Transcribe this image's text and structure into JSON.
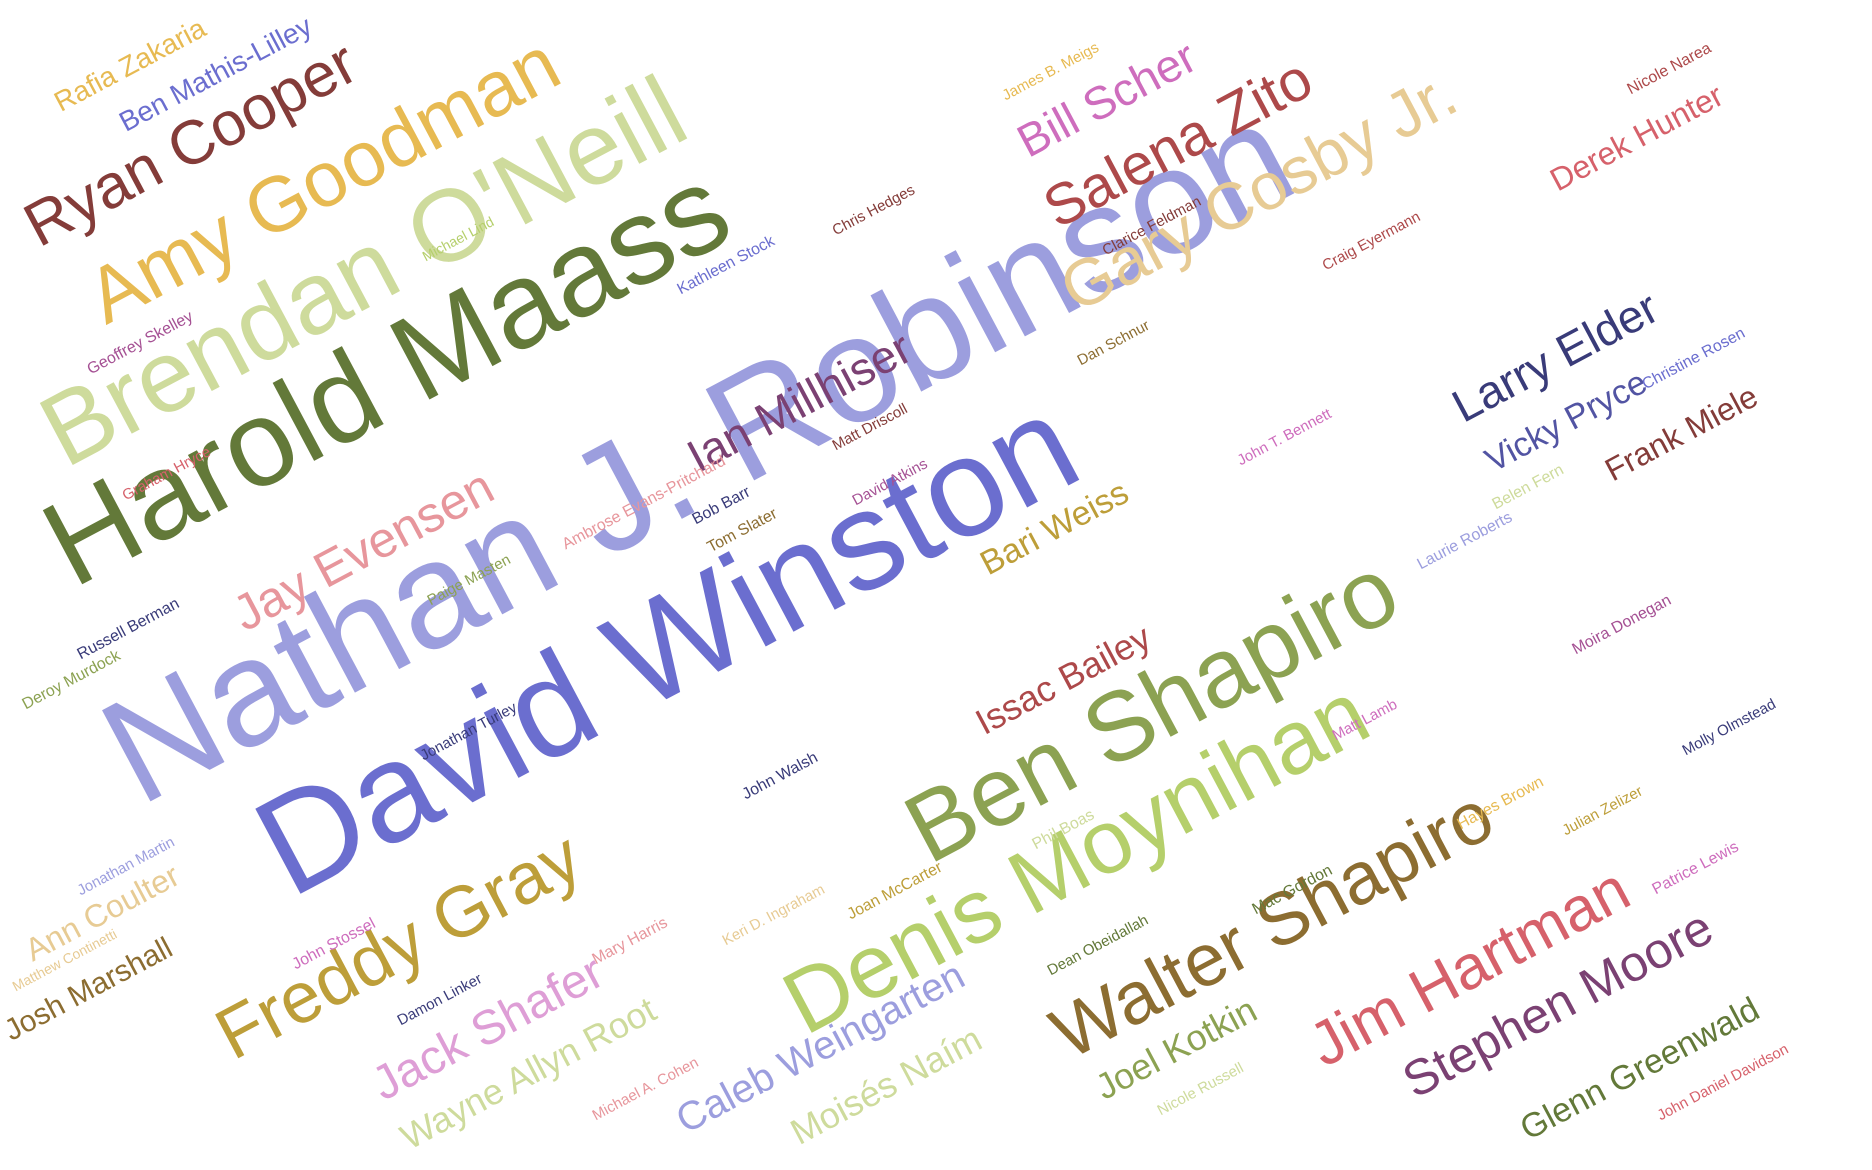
{
  "words": [
    {
      "text": "Nathan J. Robinson",
      "color": "#9c9ede"
    },
    {
      "text": "David Winston",
      "color": "#6b6ecf"
    },
    {
      "text": "Harold Maass",
      "color": "#637939"
    },
    {
      "text": "Brendan O'Neill",
      "color": "#cedb9c"
    },
    {
      "text": "Ben Shapiro",
      "color": "#8ca252"
    },
    {
      "text": "Denis Moynihan",
      "color": "#b5cf6b"
    },
    {
      "text": "Amy Goodman",
      "color": "#e7ba52"
    },
    {
      "text": "Walter Shapiro",
      "color": "#8c6d31"
    },
    {
      "text": "Gary Cosby Jr.",
      "color": "#e7cb94"
    },
    {
      "text": "Freddy Gray",
      "color": "#bd9e39"
    },
    {
      "text": "Salena Zito",
      "color": "#ad494a"
    },
    {
      "text": "Ryan Cooper",
      "color": "#843c39"
    },
    {
      "text": "Jim Hartman",
      "color": "#d6616b"
    },
    {
      "text": "Stephen Moore",
      "color": "#7b4173"
    },
    {
      "text": "Ian Millhiser",
      "color": "#7b4173"
    },
    {
      "text": "Jay Evensen",
      "color": "#e7969c"
    },
    {
      "text": "Larry Elder",
      "color": "#393b79"
    },
    {
      "text": "Bill Scher",
      "color": "#ce6dbd"
    },
    {
      "text": "Jack Shafer",
      "color": "#de9ed6"
    },
    {
      "text": "Caleb Weingarten",
      "color": "#9c9ede"
    },
    {
      "text": "Wayne Allyn Root",
      "color": "#cedb9c"
    },
    {
      "text": "Moisés Naím",
      "color": "#cedb9c"
    },
    {
      "text": "Joel Kotkin",
      "color": "#8ca252"
    },
    {
      "text": "Glenn Greenwald",
      "color": "#637939"
    },
    {
      "text": "Issac Bailey",
      "color": "#ad494a"
    },
    {
      "text": "Bari Weiss",
      "color": "#bd9e39"
    },
    {
      "text": "Vicky Pryce",
      "color": "#5254a3"
    },
    {
      "text": "Frank Miele",
      "color": "#843c39"
    },
    {
      "text": "Derek Hunter",
      "color": "#d6616b"
    },
    {
      "text": "Ann Coulter",
      "color": "#e7cb94"
    },
    {
      "text": "Josh Marshall",
      "color": "#8c6d31"
    },
    {
      "text": "Rafia Zakaria",
      "color": "#e7ba52"
    },
    {
      "text": "Ben Mathis-Lilley",
      "color": "#6b6ecf"
    },
    {
      "text": "Nicole Narea",
      "color": "#ad494a"
    },
    {
      "text": "James B. Meigs",
      "color": "#e7ba52"
    },
    {
      "text": "Chris Hedges",
      "color": "#843c39"
    },
    {
      "text": "Michael Lind",
      "color": "#b5cf6b"
    },
    {
      "text": "Kathleen Stock",
      "color": "#6b6ecf"
    },
    {
      "text": "Geoffrey Skelley",
      "color": "#a55194"
    },
    {
      "text": "Clarice Feldman",
      "color": "#843c39"
    },
    {
      "text": "Craig Eyermann",
      "color": "#ad494a"
    },
    {
      "text": "Dan Schnur",
      "color": "#8c6d31"
    },
    {
      "text": "Christine Rosen",
      "color": "#6b6ecf"
    },
    {
      "text": "Matt Driscoll",
      "color": "#843c39"
    },
    {
      "text": "Graham Hryce",
      "color": "#d6616b"
    },
    {
      "text": "John T. Bennett",
      "color": "#ce6dbd"
    },
    {
      "text": "David Atkins",
      "color": "#a55194"
    },
    {
      "text": "Ambrose Evans-Pritchard",
      "color": "#e7969c"
    },
    {
      "text": "Bob Barr",
      "color": "#393b79"
    },
    {
      "text": "Tom Slater",
      "color": "#8c6d31"
    },
    {
      "text": "Belen Fern",
      "color": "#cedb9c"
    },
    {
      "text": "Laurie Roberts",
      "color": "#9c9ede"
    },
    {
      "text": "Paige Masten",
      "color": "#8ca252"
    },
    {
      "text": "Russell Berman",
      "color": "#393b79"
    },
    {
      "text": "Deroy Murdock",
      "color": "#8ca252"
    },
    {
      "text": "Moira Donegan",
      "color": "#a55194"
    },
    {
      "text": "Jonathan Turley",
      "color": "#393b79"
    },
    {
      "text": "Matt Lamb",
      "color": "#ce6dbd"
    },
    {
      "text": "Molly Olmstead",
      "color": "#393b79"
    },
    {
      "text": "John Walsh",
      "color": "#393b79"
    },
    {
      "text": "Hayes Brown",
      "color": "#e7ba52"
    },
    {
      "text": "Julian Zelizer",
      "color": "#bd9e39"
    },
    {
      "text": "Phil Boas",
      "color": "#cedb9c"
    },
    {
      "text": "Jonathan Martin",
      "color": "#9c9ede"
    },
    {
      "text": "Patrice Lewis",
      "color": "#ce6dbd"
    },
    {
      "text": "Keri D. Ingraham",
      "color": "#e7cb94"
    },
    {
      "text": "Joan McCarter",
      "color": "#bd9e39"
    },
    {
      "text": "Mac Gordon",
      "color": "#637939"
    },
    {
      "text": "Matthew Continetti",
      "color": "#e7cb94"
    },
    {
      "text": "John Stossel",
      "color": "#ce6dbd"
    },
    {
      "text": "Mary Harris",
      "color": "#e7969c"
    },
    {
      "text": "Dean Obeidallah",
      "color": "#637939"
    },
    {
      "text": "Damon Linker",
      "color": "#393b79"
    },
    {
      "text": "Michael A. Cohen",
      "color": "#e7969c"
    },
    {
      "text": "Nicole Russell",
      "color": "#cedb9c"
    },
    {
      "text": "John Daniel Davidson",
      "color": "#d6616b"
    }
  ]
}
